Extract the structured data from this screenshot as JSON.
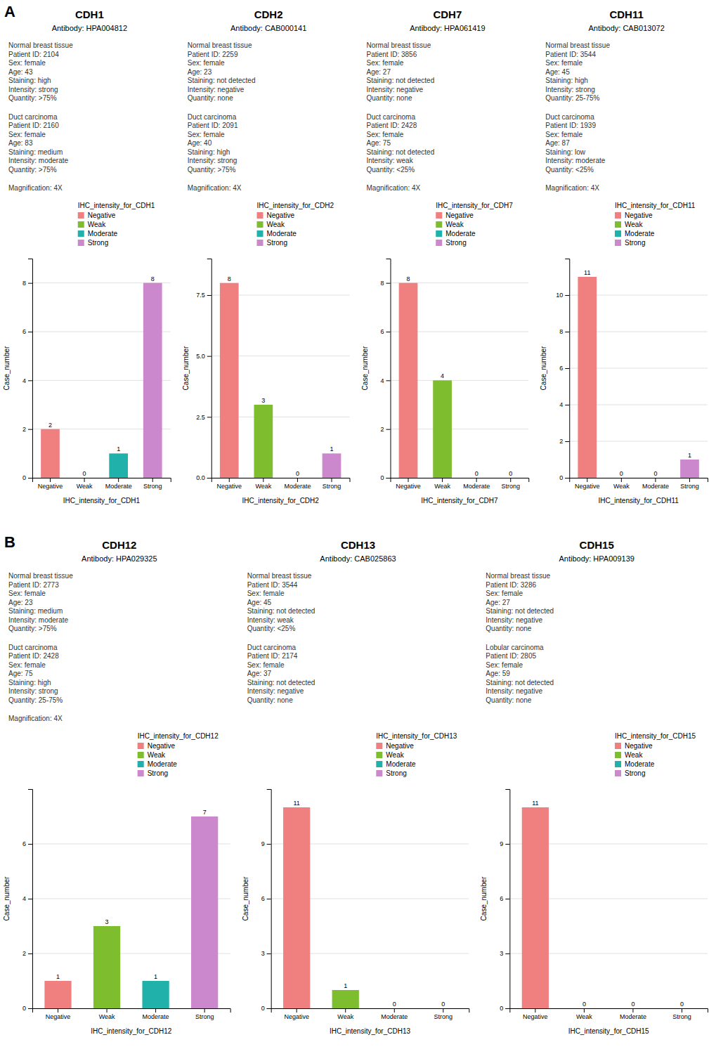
{
  "chart_data": [
    {
      "type": "bar",
      "panel_label": "A",
      "title": "CDH1",
      "subtitle": "Antibody: HPA004812",
      "xlabel": "IHC_intensity_for_CDH1",
      "ylabel": "Case_number",
      "categories": [
        "Negative",
        "Weak",
        "Moderate",
        "Strong"
      ],
      "values": [
        2,
        0,
        1,
        8
      ],
      "colors": [
        "#F08080",
        "#7DBD2E",
        "#20B2AA",
        "#CC88CC"
      ],
      "ylim": [
        0,
        9
      ],
      "yticks": [
        0,
        2,
        4,
        6,
        8
      ],
      "grid": true,
      "data_labels": true,
      "legend": "upper-right",
      "legend_title": "IHC_intensity_for_CDH1",
      "annotations": [
        "Normal breast tissue\nPatient ID: 2104\nSex: female\nAge: 43\nStaining: high\nIntensity: strong\nQuantity: >75%",
        "Duct carcinoma\nPatient ID: 2160\nSex: female\nAge: 83\nStaining: medium\nIntensity: moderate\nQuantity: >75%",
        "Magnification: 4X"
      ]
    },
    {
      "type": "bar",
      "title": "CDH2",
      "subtitle": "Antibody: CAB000141",
      "xlabel": "IHC_intensity_for_CDH2",
      "ylabel": "Case_number",
      "categories": [
        "Negative",
        "Weak",
        "Moderate",
        "Strong"
      ],
      "values": [
        8,
        3,
        0,
        1
      ],
      "colors": [
        "#F08080",
        "#7DBD2E",
        "#20B2AA",
        "#CC88CC"
      ],
      "ylim": [
        0,
        9
      ],
      "yticks": [
        {
          "value": 0,
          "label": "0.0"
        },
        2.5,
        {
          "value": 5,
          "label": "5.0"
        },
        7.5
      ],
      "grid": true,
      "data_labels": true,
      "legend": "upper-right",
      "legend_title": "IHC_intensity_for_CDH2",
      "annotations": [
        "Normal breast tissue\nPatient ID: 2259\nSex: female\nAge: 23\nStaining: not detected\nIntensity: negative\nQuantity: none",
        "Duct carcinoma\nPatient ID: 2091\nSex: female\nAge: 40\nStaining: high\nIntensity: strong\nQuantity: >75%",
        "Magnification: 4X"
      ]
    },
    {
      "type": "bar",
      "title": "CDH7",
      "subtitle": "Antibody: HPA061419",
      "xlabel": "IHC_intensity_for_CDH7",
      "ylabel": "Case_number",
      "categories": [
        "Negative",
        "Weak",
        "Moderate",
        "Strong"
      ],
      "values": [
        8,
        4,
        0,
        0
      ],
      "colors": [
        "#F08080",
        "#7DBD2E",
        "#20B2AA",
        "#CC88CC"
      ],
      "ylim": [
        0,
        9
      ],
      "yticks": [
        0,
        2,
        4,
        6,
        8
      ],
      "grid": true,
      "data_labels": true,
      "legend": "upper-right",
      "legend_title": "IHC_intensity_for_CDH7",
      "annotations": [
        "Normal breast tissue\nPatient ID: 3856\nSex: female\nAge: 27\nStaining: not detected\nIntensity: negative\nQuantity: none",
        "Duct carcinoma\nPatient ID: 2428\nSex: female\nAge: 75\nStaining: not detected\nIntensity: weak\nQuantity: <25%",
        "Magnification: 4X"
      ]
    },
    {
      "type": "bar",
      "title": "CDH11",
      "subtitle": "Antibody: CAB013072",
      "xlabel": "IHC_intensity_for_CDH11",
      "ylabel": "Case_number",
      "categories": [
        "Negative",
        "Weak",
        "Moderate",
        "Strong"
      ],
      "values": [
        11,
        0,
        0,
        1
      ],
      "colors": [
        "#F08080",
        "#7DBD2E",
        "#20B2AA",
        "#CC88CC"
      ],
      "ylim": [
        0,
        12
      ],
      "yticks": [
        0,
        2,
        4,
        6,
        8,
        10
      ],
      "grid": true,
      "data_labels": true,
      "legend": "upper-right",
      "legend_title": "IHC_intensity_for_CDH11",
      "annotations": [
        "Normal breast tissue\nPatient ID: 3544\nSex: female\nAge: 45\nStaining: high\nIntensity: strong\nQuantity: 25-75%",
        "Duct carcinoma\nPatient ID: 1939\nSex: female\nAge: 87\nStaining: low\nIntensity: moderate\nQuantity: <25%",
        "Magnification: 4X"
      ]
    },
    {
      "type": "bar",
      "panel_label": "B",
      "title": "CDH12",
      "subtitle": "Antibody: HPA029325",
      "xlabel": "IHC_intensity_for_CDH12",
      "ylabel": "Case_number",
      "categories": [
        "Negative",
        "Weak",
        "Moderate",
        "Strong"
      ],
      "values": [
        1,
        3,
        1,
        7
      ],
      "colors": [
        "#F08080",
        "#7DBD2E",
        "#20B2AA",
        "#CC88CC"
      ],
      "ylim": [
        0,
        8
      ],
      "yticks": [
        0,
        2,
        4,
        6
      ],
      "grid": true,
      "data_labels": true,
      "legend": "upper-right",
      "legend_title": "IHC_intensity_for_CDH12",
      "annotations": [
        "Normal breast tissue\nPatient ID: 2773\nSex: female\nAge: 23\nStaining: medium\nIntensity: moderate\nQuantity: >75%",
        "Duct carcinoma\nPatient ID: 2428\nSex: female\nAge: 75\nStaining: high\nIntensity: strong\nQuantity: 25-75%",
        "Magnification: 4X"
      ]
    },
    {
      "type": "bar",
      "title": "CDH13",
      "subtitle": "Antibody: CAB025863",
      "xlabel": "IHC_intensity_for_CDH13",
      "ylabel": "Case_number",
      "categories": [
        "Negative",
        "Weak",
        "Moderate",
        "Strong"
      ],
      "values": [
        11,
        1,
        0,
        0
      ],
      "colors": [
        "#F08080",
        "#7DBD2E",
        "#20B2AA",
        "#CC88CC"
      ],
      "ylim": [
        0,
        12
      ],
      "yticks": [
        0,
        3,
        6,
        9
      ],
      "grid": true,
      "data_labels": true,
      "legend": "upper-right",
      "legend_title": "IHC_intensity_for_CDH13",
      "annotations": [
        "Normal breast tissue\nPatient ID: 3544\nSex: female\nAge: 45\nStaining: not detected\nIntensity: weak\nQuantity: <25%",
        "Duct carcinoma\nPatient ID: 2174\nSex: female\nAge: 37\nStaining: not detected\nIntensity: negative\nQuantity: none"
      ]
    },
    {
      "type": "bar",
      "title": "CDH15",
      "subtitle": "Antibody: HPA009139",
      "xlabel": "IHC_intensity_for_CDH15",
      "ylabel": "Case_number",
      "categories": [
        "Negative",
        "Weak",
        "Moderate",
        "Strong"
      ],
      "values": [
        11,
        0,
        0,
        0
      ],
      "colors": [
        "#F08080",
        "#7DBD2E",
        "#20B2AA",
        "#CC88CC"
      ],
      "ylim": [
        0,
        12
      ],
      "yticks": [
        0,
        3,
        6,
        9
      ],
      "grid": true,
      "data_labels": true,
      "legend": "upper-right",
      "legend_title": "IHC_intensity_for_CDH15",
      "annotations": [
        "Normal breast tissue\nPatient ID: 3286\nSex: female\nAge: 27\nStaining: not detected\nIntensity: negative\nQuantity: none",
        "Lobular carcinoma\nPatient ID: 2805\nSex: female\nAge: 59\nStaining: not detected\nIntensity: negative\nQuantity: none"
      ]
    }
  ]
}
